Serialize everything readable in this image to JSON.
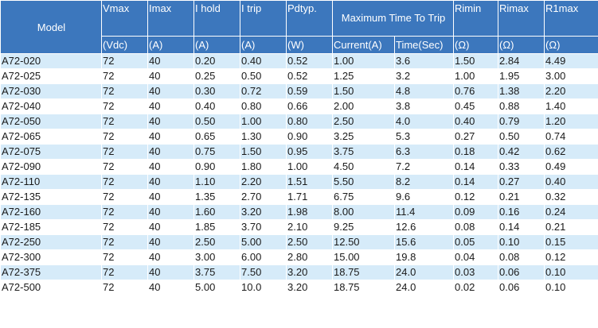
{
  "table": {
    "headers": {
      "model": "Model",
      "vmax": "Vmax",
      "imax": "Imax",
      "ihold": "I hold",
      "itrip": "I trip",
      "pdtyp": "Pdtyp.",
      "max_time_to_trip": "Maximum Time To Trip",
      "rimin": "Rimin",
      "rimax": "Rimax",
      "r1max": "R1max"
    },
    "units": {
      "vmax": "(Vdc)",
      "imax": "(A)",
      "ihold": "(A)",
      "itrip": "(A)",
      "pdtyp": "(W)",
      "current": "Current(A)",
      "time": "Time(Sec)",
      "rimin": "(Ω)",
      "rimax": "(Ω)",
      "r1max": "(Ω)"
    },
    "rows": [
      [
        "A72-020",
        "72",
        "40",
        "0.20",
        "0.40",
        "0.52",
        "1.00",
        "3.6",
        "1.50",
        "2.84",
        "4.49"
      ],
      [
        "A72-025",
        "72",
        "40",
        "0.25",
        "0.50",
        "0.52",
        "1.25",
        "3.2",
        "1.00",
        "1.95",
        "3.00"
      ],
      [
        "A72-030",
        "72",
        "40",
        "0.30",
        "0.72",
        "0.59",
        "1.50",
        "4.8",
        "0.76",
        "1.38",
        "2.20"
      ],
      [
        "A72-040",
        "72",
        "40",
        "0.40",
        "0.80",
        "0.66",
        "2.00",
        "3.8",
        "0.45",
        "0.88",
        "1.40"
      ],
      [
        "A72-050",
        "72",
        "40",
        "0.50",
        "1.00",
        "0.80",
        "2.50",
        "4.0",
        "0.40",
        "0.79",
        "1.20"
      ],
      [
        "A72-065",
        "72",
        "40",
        "0.65",
        "1.30",
        "0.90",
        "3.25",
        "5.3",
        "0.27",
        "0.50",
        "0.74"
      ],
      [
        "A72-075",
        "72",
        "40",
        "0.75",
        "1.50",
        "0.95",
        "3.75",
        "6.3",
        "0.18",
        "0.42",
        "0.62"
      ],
      [
        "A72-090",
        "72",
        "40",
        "0.90",
        "1.80",
        "1.00",
        "4.50",
        "7.2",
        "0.14",
        "0.33",
        "0.49"
      ],
      [
        "A72-110",
        "72",
        "40",
        "1.10",
        "2.20",
        "1.51",
        "5.50",
        "8.2",
        "0.14",
        "0.27",
        "0.40"
      ],
      [
        "A72-135",
        "72",
        "40",
        "1.35",
        "2.70",
        "1.71",
        "6.75",
        "9.6",
        "0.12",
        "0.21",
        "0.32"
      ],
      [
        "A72-160",
        "72",
        "40",
        "1.60",
        "3.20",
        "1.98",
        "8.00",
        "11.4",
        "0.09",
        "0.16",
        "0.24"
      ],
      [
        "A72-185",
        "72",
        "40",
        "1.85",
        "3.70",
        "2.10",
        "9.25",
        "12.6",
        "0.08",
        "0.14",
        "0.21"
      ],
      [
        "A72-250",
        "72",
        "40",
        "2.50",
        "5.00",
        "2.50",
        "12.50",
        "15.6",
        "0.05",
        "0.10",
        "0.15"
      ],
      [
        "A72-300",
        "72",
        "40",
        "3.00",
        "6.00",
        "2.80",
        "15.00",
        "19.8",
        "0.04",
        "0.08",
        "0.12"
      ],
      [
        "A72-375",
        "72",
        "40",
        "3.75",
        "7.50",
        "3.20",
        "18.75",
        "24.0",
        "0.03",
        "0.06",
        "0.10"
      ],
      [
        "A72-500",
        "72",
        "40",
        "5.00",
        "10.0",
        "3.20",
        "18.75",
        "24.0",
        "0.02",
        "0.06",
        "0.10"
      ]
    ]
  },
  "colors": {
    "header_bg": "#3c77bd",
    "header_text": "#ffffff",
    "row_odd_bg": "#d6ebf9",
    "row_even_bg": "#ffffff"
  }
}
